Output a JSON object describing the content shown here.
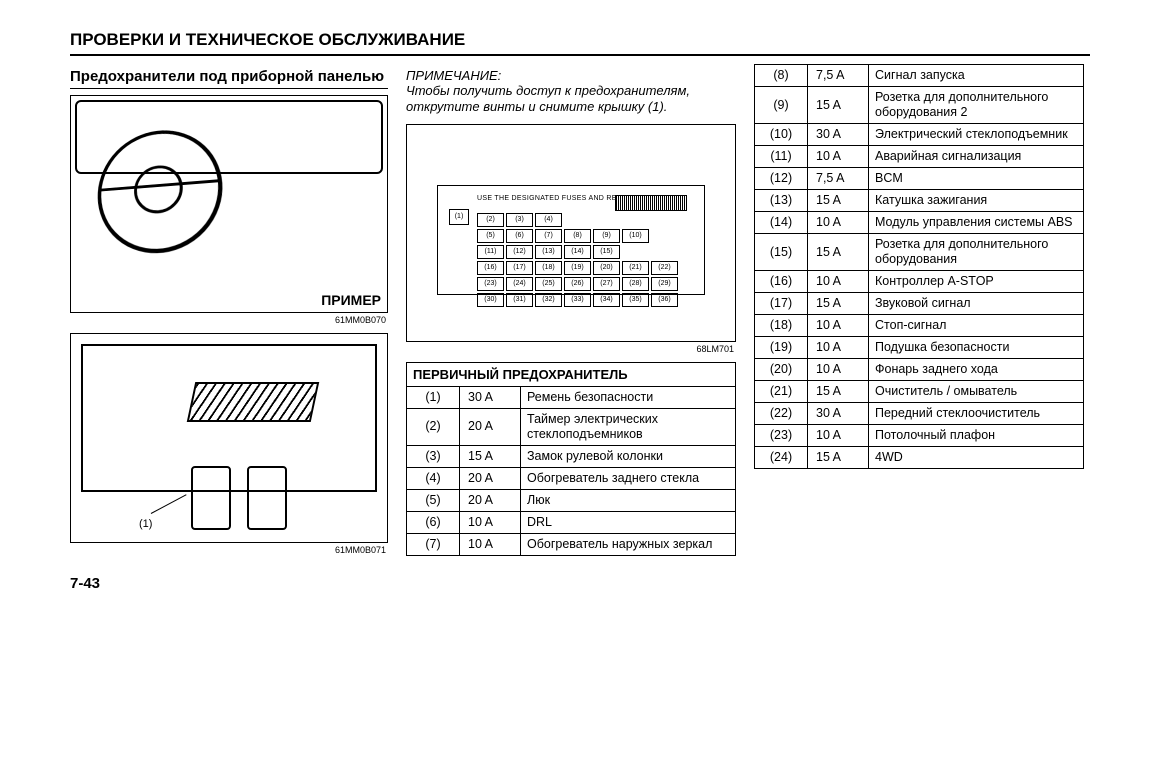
{
  "page": {
    "title": "ПРОВЕРКИ И ТЕХНИЧЕСКОЕ ОБСЛУЖИВАНИЕ",
    "section_heading": "Предохранители под приборной панелью",
    "example_label": "ПРИМЕР",
    "fig1_code": "61MM0B070",
    "fig2_code": "61MM0B071",
    "fig2_callout": "(1)",
    "fig3_code": "68LM701",
    "note_heading": "ПРИМЕЧАНИЕ:",
    "note_body": "Чтобы получить доступ к предохранителям, открутите винты и снимите крышку (1).",
    "diagram_caption": "USE THE DESIGNATED FUSES AND RELAYS ONLY.",
    "diagram_slot1": "(1)",
    "diagram_cells": [
      "(2)",
      "(3)",
      "(4)",
      "",
      "",
      "",
      "",
      "(5)",
      "(6)",
      "(7)",
      "(8)",
      "(9)",
      "(10)",
      "",
      "(11)",
      "(12)",
      "(13)",
      "(14)",
      "(15)",
      "",
      "",
      "(16)",
      "(17)",
      "(18)",
      "(19)",
      "(20)",
      "(21)",
      "(22)",
      "(23)",
      "(24)",
      "(25)",
      "(26)",
      "(27)",
      "(28)",
      "(29)",
      "(30)",
      "(31)",
      "(32)",
      "(33)",
      "(34)",
      "(35)",
      "(36)"
    ],
    "table_header": "ПЕРВИЧНЫЙ ПРЕДОХРАНИТЕЛЬ",
    "page_number": "7-43"
  },
  "fuses_left": [
    {
      "n": "(1)",
      "a": "30 A",
      "d": "Ремень безопасности"
    },
    {
      "n": "(2)",
      "a": "20 A",
      "d": "Таймер электрических стеклоподъемников"
    },
    {
      "n": "(3)",
      "a": "15 A",
      "d": "Замок рулевой колонки"
    },
    {
      "n": "(4)",
      "a": "20 A",
      "d": "Обогреватель заднего стекла"
    },
    {
      "n": "(5)",
      "a": "20 A",
      "d": "Люк"
    },
    {
      "n": "(6)",
      "a": "10 A",
      "d": "DRL"
    },
    {
      "n": "(7)",
      "a": "10 A",
      "d": "Обогреватель наружных зеркал"
    }
  ],
  "fuses_right": [
    {
      "n": "(8)",
      "a": "7,5 A",
      "d": "Сигнал запуска"
    },
    {
      "n": "(9)",
      "a": "15 A",
      "d": "Розетка для дополнительного оборудования 2"
    },
    {
      "n": "(10)",
      "a": "30 A",
      "d": "Электрический стеклоподъемник"
    },
    {
      "n": "(11)",
      "a": "10 A",
      "d": "Аварийная сигнализация"
    },
    {
      "n": "(12)",
      "a": "7,5 A",
      "d": "BCM"
    },
    {
      "n": "(13)",
      "a": "15 A",
      "d": "Катушка зажигания"
    },
    {
      "n": "(14)",
      "a": "10 A",
      "d": "Модуль управления системы ABS"
    },
    {
      "n": "(15)",
      "a": "15 A",
      "d": "Розетка для дополнительного оборудования"
    },
    {
      "n": "(16)",
      "a": "10 A",
      "d": "Контроллер A-STOP"
    },
    {
      "n": "(17)",
      "a": "15 A",
      "d": "Звуковой сигнал"
    },
    {
      "n": "(18)",
      "a": "10 A",
      "d": "Стоп-сигнал"
    },
    {
      "n": "(19)",
      "a": "10 A",
      "d": "Подушка безопасности"
    },
    {
      "n": "(20)",
      "a": "10 A",
      "d": "Фонарь заднего хода"
    },
    {
      "n": "(21)",
      "a": "15 A",
      "d": "Очиститель / омыватель"
    },
    {
      "n": "(22)",
      "a": "30 A",
      "d": "Передний стеклоочиститель"
    },
    {
      "n": "(23)",
      "a": "10 A",
      "d": "Потолочный плафон"
    },
    {
      "n": "(24)",
      "a": "15 A",
      "d": "4WD"
    }
  ]
}
